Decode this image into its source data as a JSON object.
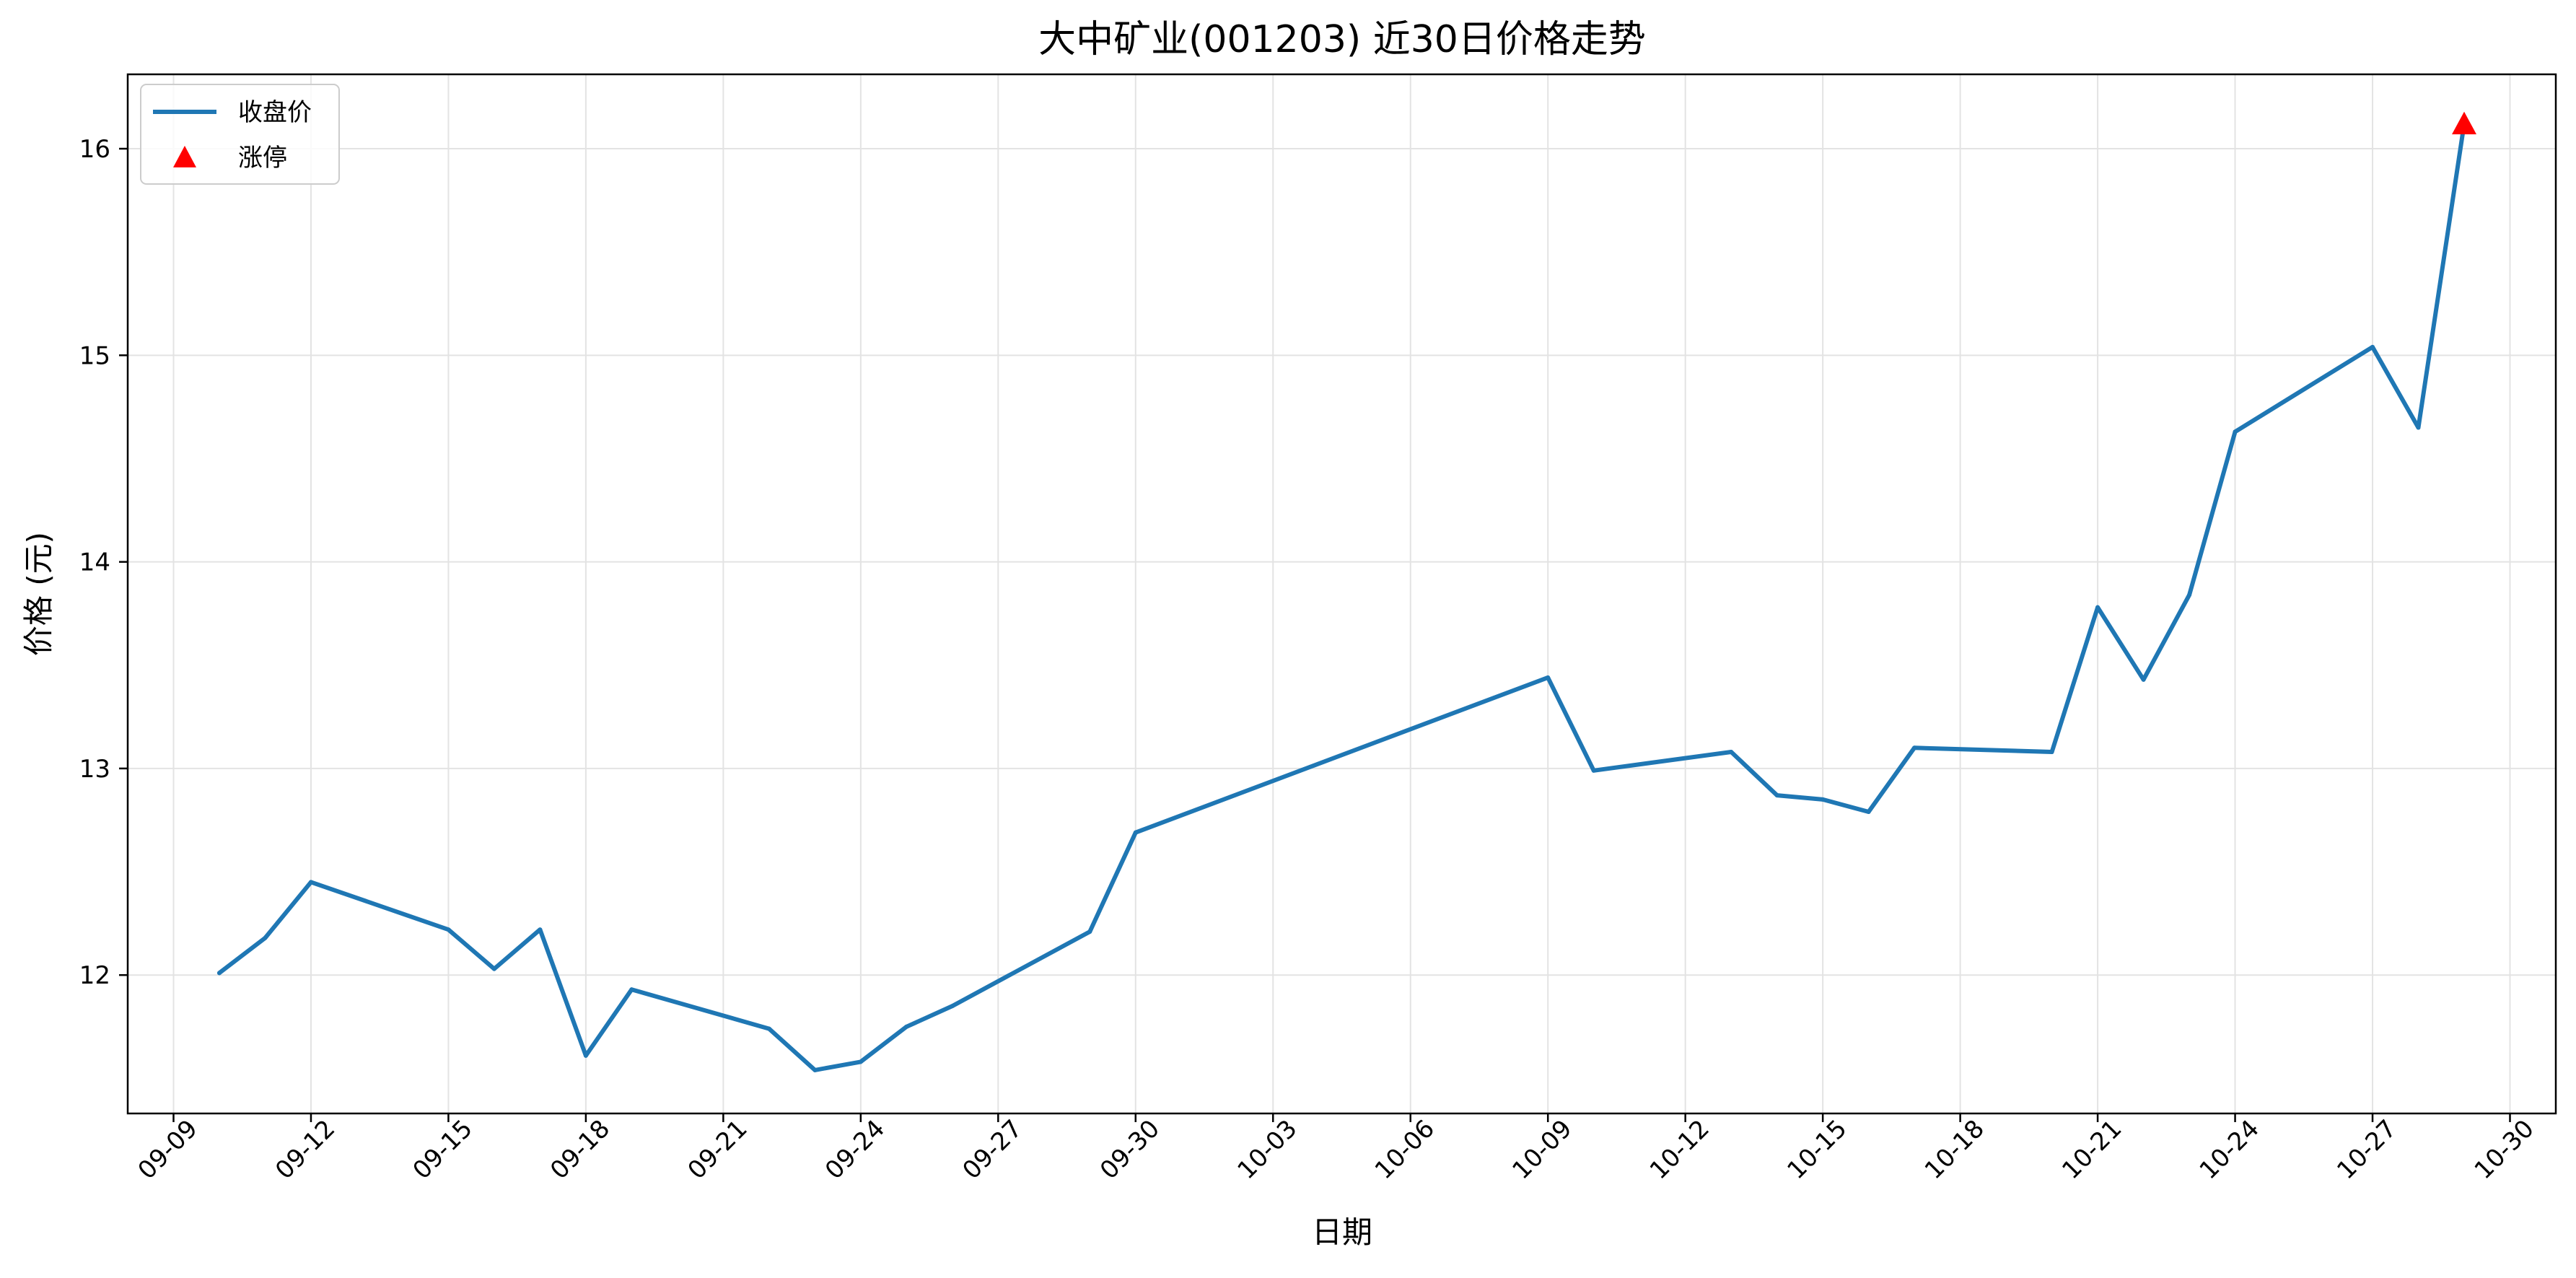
{
  "chart_data": {
    "type": "line",
    "title": "大中矿业(001203) 近30日价格走势",
    "xlabel": "日期",
    "ylabel": "价格 (元)",
    "xlim": [
      "2025-09-08",
      "2025-10-31"
    ],
    "ylim": [
      11.33,
      16.36
    ],
    "x_ticks": [
      "09-09",
      "09-12",
      "09-15",
      "09-18",
      "09-21",
      "09-24",
      "09-27",
      "09-30",
      "10-03",
      "10-06",
      "10-09",
      "10-12",
      "10-15",
      "10-18",
      "10-21",
      "10-24",
      "10-27",
      "10-30"
    ],
    "y_ticks": [
      12,
      13,
      14,
      15,
      16
    ],
    "grid": true,
    "legend_position": "top-left",
    "series": [
      {
        "name": "收盘价",
        "color": "#1f77b4",
        "points": [
          {
            "x": "2025-09-10",
            "y": 12.01
          },
          {
            "x": "2025-09-11",
            "y": 12.18
          },
          {
            "x": "2025-09-12",
            "y": 12.45
          },
          {
            "x": "2025-09-15",
            "y": 12.22
          },
          {
            "x": "2025-09-16",
            "y": 12.03
          },
          {
            "x": "2025-09-17",
            "y": 12.22
          },
          {
            "x": "2025-09-18",
            "y": 11.61
          },
          {
            "x": "2025-09-19",
            "y": 11.93
          },
          {
            "x": "2025-09-22",
            "y": 11.74
          },
          {
            "x": "2025-09-23",
            "y": 11.54
          },
          {
            "x": "2025-09-24",
            "y": 11.58
          },
          {
            "x": "2025-09-25",
            "y": 11.75
          },
          {
            "x": "2025-09-26",
            "y": 11.85
          },
          {
            "x": "2025-09-29",
            "y": 12.21
          },
          {
            "x": "2025-09-30",
            "y": 12.69
          },
          {
            "x": "2025-10-09",
            "y": 13.44
          },
          {
            "x": "2025-10-10",
            "y": 12.99
          },
          {
            "x": "2025-10-13",
            "y": 13.08
          },
          {
            "x": "2025-10-14",
            "y": 12.87
          },
          {
            "x": "2025-10-15",
            "y": 12.85
          },
          {
            "x": "2025-10-16",
            "y": 12.79
          },
          {
            "x": "2025-10-17",
            "y": 13.1
          },
          {
            "x": "2025-10-20",
            "y": 13.08
          },
          {
            "x": "2025-10-21",
            "y": 13.78
          },
          {
            "x": "2025-10-22",
            "y": 13.43
          },
          {
            "x": "2025-10-23",
            "y": 13.84
          },
          {
            "x": "2025-10-24",
            "y": 14.63
          },
          {
            "x": "2025-10-27",
            "y": 15.04
          },
          {
            "x": "2025-10-28",
            "y": 14.65
          },
          {
            "x": "2025-10-29",
            "y": 16.12
          }
        ]
      },
      {
        "name": "涨停",
        "type": "scatter",
        "marker": "triangle-up",
        "color": "#ff0000",
        "points": [
          {
            "x": "2025-10-29",
            "y": 16.12
          }
        ]
      }
    ]
  }
}
